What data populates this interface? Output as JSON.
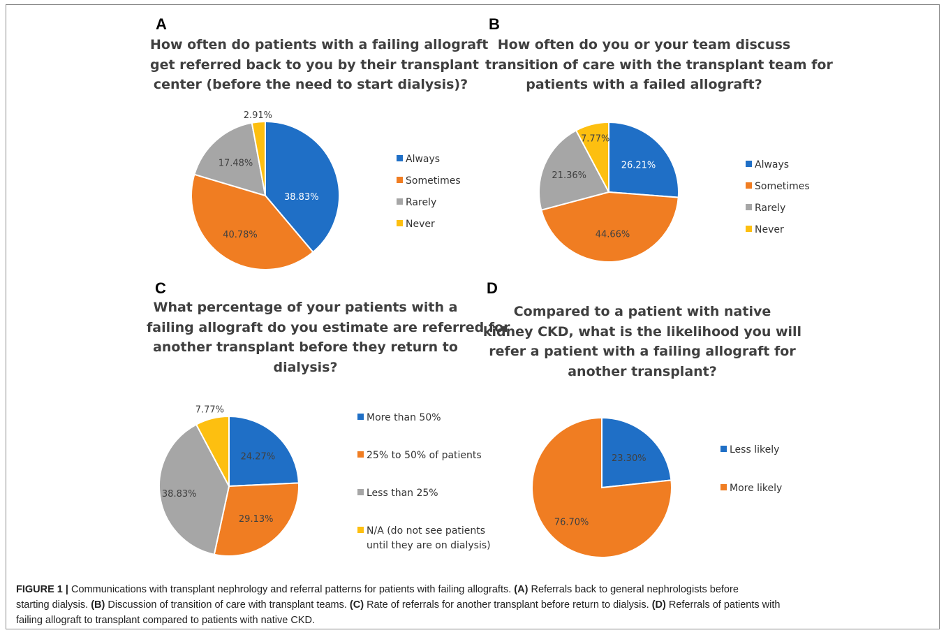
{
  "colors": {
    "always": "#1f6fc6",
    "sometimes": "#f07d22",
    "rarely": "#a6a6a6",
    "never": "#fdbf10",
    "title": "#3f3f3f"
  },
  "chart_data": [
    {
      "type": "pie",
      "panel": "A",
      "title_lines": [
        "How often do patients with a failing allograft",
        "get referred back to you by their transplant",
        "center (before the need to start dialysis)?"
      ],
      "categories": [
        "Always",
        "Sometimes",
        "Rarely",
        "Never"
      ],
      "values": [
        38.83,
        40.78,
        17.48,
        2.91
      ],
      "labels": [
        "38.83%",
        "40.78%",
        "17.48%",
        "2.91%"
      ],
      "legend_position": "right"
    },
    {
      "type": "pie",
      "panel": "B",
      "title_lines": [
        "How often do you or your team discuss",
        "transition of care with the transplant team for",
        "patients with a failed allograft?"
      ],
      "categories": [
        "Always",
        "Sometimes",
        "Rarely",
        "Never"
      ],
      "values": [
        26.21,
        44.66,
        21.36,
        7.77
      ],
      "labels": [
        "26.21%",
        "44.66%",
        "21.36%",
        "7.77%"
      ],
      "legend_position": "right"
    },
    {
      "type": "pie",
      "panel": "C",
      "title_lines": [
        "What percentage of your patients with a",
        "failing allograft do you estimate are referred for",
        "another transplant before they return to",
        "dialysis?"
      ],
      "categories": [
        "More than 50%",
        "25% to 50% of patients",
        "Less than 25%",
        "N/A (do not see patients until they are on dialysis)"
      ],
      "legend_lines": [
        [
          "More than 50%"
        ],
        [
          "25% to 50% of patients"
        ],
        [
          "Less than 25%"
        ],
        [
          "N/A (do not see patients",
          "until they are on dialysis)"
        ]
      ],
      "values": [
        24.27,
        29.13,
        38.83,
        7.77
      ],
      "labels": [
        "24.27%",
        "29.13%",
        "38.83%",
        "7.77%"
      ],
      "legend_position": "right"
    },
    {
      "type": "pie",
      "panel": "D",
      "title_lines": [
        "Compared to a patient with native",
        "kidney CKD, what is the likelihood you will",
        "refer a patient with a failing allograft for",
        "another transplant?"
      ],
      "categories": [
        "Less likely",
        "More likely"
      ],
      "values": [
        23.3,
        76.7
      ],
      "labels": [
        "23.30%",
        "76.70%"
      ],
      "legend_position": "right"
    }
  ],
  "caption": {
    "figure_label": "FIGURE 1 |",
    "lines": [
      [
        {
          "t": "FIGURE 1 |",
          "b": true
        },
        {
          "t": " Communications with transplant nephrology and referral patterns for patients with failing allografts. ",
          "b": false
        },
        {
          "t": "(A)",
          "b": true
        },
        {
          "t": " Referrals back to general nephrologists before",
          "b": false
        }
      ],
      [
        {
          "t": "starting dialysis. ",
          "b": false
        },
        {
          "t": "(B)",
          "b": true
        },
        {
          "t": " Discussion of transition of care with transplant teams. ",
          "b": false
        },
        {
          "t": "(C)",
          "b": true
        },
        {
          "t": " Rate of referrals for another transplant before return to dialysis. ",
          "b": false
        },
        {
          "t": "(D)",
          "b": true
        },
        {
          "t": " Referrals of patients with",
          "b": false
        }
      ],
      [
        {
          "t": "failing allograft to transplant compared to patients with native CKD.",
          "b": false
        }
      ]
    ]
  }
}
